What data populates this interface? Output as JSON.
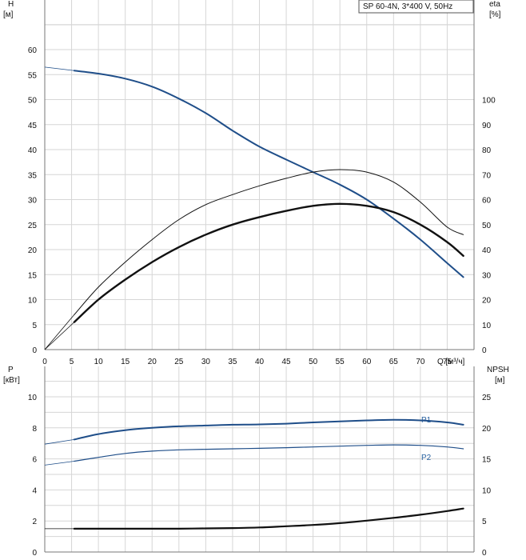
{
  "chart_data": [
    {
      "type": "line",
      "title": "SP 60-4N, 3*400 V, 50Hz",
      "y_left_label": [
        "H",
        "[м]"
      ],
      "y_right_label": [
        "eta",
        "[%]"
      ],
      "x_label": "Q [м³/ч]",
      "xlim": [
        0,
        80
      ],
      "ylim_left": [
        0,
        60
      ],
      "ylim_right": [
        0,
        100
      ],
      "x_ticks": [
        "0",
        "5",
        "10",
        "15",
        "20",
        "25",
        "30",
        "35",
        "40",
        "45",
        "50",
        "55",
        "60",
        "65",
        "70",
        "75"
      ],
      "y_left_ticks": [
        "0",
        "5",
        "10",
        "15",
        "20",
        "25",
        "30",
        "35",
        "40",
        "45",
        "50",
        "55",
        "60"
      ],
      "y_right_ticks": [
        "0",
        "10",
        "20",
        "30",
        "40",
        "50",
        "60",
        "70",
        "80",
        "90",
        "100"
      ],
      "grid": true,
      "series": [
        {
          "axis": "left",
          "color": "#1f4e89",
          "width": 2,
          "x": [
            5.5,
            10,
            15,
            20,
            25,
            30,
            35,
            40,
            45,
            50,
            55,
            60,
            65,
            70,
            75,
            78
          ],
          "y": [
            55.8,
            55.2,
            54.2,
            52.6,
            50.2,
            47.3,
            43.8,
            40.6,
            38.0,
            35.5,
            33.0,
            30.0,
            26.2,
            22.0,
            17.3,
            14.5
          ],
          "extension": {
            "x": [
              0,
              5.5
            ],
            "y": [
              56.5,
              55.8
            ]
          }
        },
        {
          "axis": "right",
          "color": "#111111",
          "width": 1,
          "x": [
            5.5,
            10,
            15,
            20,
            25,
            30,
            35,
            40,
            45,
            50,
            55,
            60,
            65,
            70,
            75,
            78
          ],
          "y": [
            14,
            25,
            35,
            44,
            52,
            58,
            62,
            65.5,
            68.5,
            71,
            72,
            71,
            67,
            59,
            49,
            46
          ],
          "extension": {
            "x": [
              0,
              5.5
            ],
            "y": [
              0,
              14
            ]
          }
        },
        {
          "axis": "right",
          "color": "#111111",
          "width": 2.4,
          "x": [
            5.5,
            10,
            15,
            20,
            25,
            30,
            35,
            40,
            45,
            50,
            55,
            60,
            65,
            70,
            75,
            78
          ],
          "y": [
            11,
            20,
            28,
            35,
            41,
            46,
            50,
            53,
            55.5,
            57.5,
            58.3,
            57.5,
            55,
            50,
            43,
            37.5
          ],
          "extension": {
            "x": [
              0,
              5.5
            ],
            "y": [
              0,
              11
            ]
          }
        }
      ]
    },
    {
      "type": "line",
      "y_left_label": [
        "P",
        "[кВт]"
      ],
      "y_right_label": [
        "NPSH",
        "[м]"
      ],
      "xlim": [
        0,
        80
      ],
      "ylim_left": [
        0,
        12
      ],
      "ylim_right": [
        0,
        30
      ],
      "x_ticks": [],
      "y_left_ticks": [
        "0",
        "2",
        "4",
        "6",
        "8",
        "10"
      ],
      "y_right_ticks": [
        "0",
        "5",
        "10",
        "15",
        "20",
        "25"
      ],
      "grid": true,
      "series": [
        {
          "name": "P1",
          "axis": "left",
          "color": "#1f4e89",
          "width": 2,
          "x": [
            5.5,
            10,
            15,
            20,
            25,
            30,
            35,
            40,
            45,
            50,
            55,
            60,
            65,
            70,
            75,
            78
          ],
          "y": [
            7.25,
            7.6,
            7.85,
            8.0,
            8.1,
            8.15,
            8.2,
            8.22,
            8.27,
            8.35,
            8.42,
            8.48,
            8.52,
            8.48,
            8.35,
            8.2
          ],
          "extension": {
            "x": [
              0,
              5.5
            ],
            "y": [
              6.95,
              7.25
            ]
          }
        },
        {
          "name": "P2",
          "axis": "left",
          "color": "#1f4e89",
          "width": 1.2,
          "x": [
            5.5,
            10,
            15,
            20,
            25,
            30,
            35,
            40,
            45,
            50,
            55,
            60,
            65,
            70,
            75,
            78
          ],
          "y": [
            5.85,
            6.1,
            6.35,
            6.5,
            6.58,
            6.62,
            6.65,
            6.68,
            6.72,
            6.77,
            6.82,
            6.87,
            6.9,
            6.87,
            6.77,
            6.65
          ],
          "extension": {
            "x": [
              0,
              5.5
            ],
            "y": [
              5.6,
              5.85
            ]
          }
        },
        {
          "axis": "right",
          "color": "#111111",
          "width": 2.2,
          "x": [
            5.5,
            10,
            15,
            20,
            25,
            30,
            35,
            40,
            45,
            50,
            55,
            60,
            65,
            70,
            75,
            78
          ],
          "y": [
            3.75,
            3.75,
            3.75,
            3.75,
            3.75,
            3.8,
            3.85,
            3.95,
            4.15,
            4.35,
            4.65,
            5.05,
            5.5,
            6.0,
            6.6,
            7.0
          ],
          "extension": {
            "x": [
              0,
              5.5
            ],
            "y": [
              3.75,
              3.75
            ]
          }
        }
      ]
    }
  ]
}
